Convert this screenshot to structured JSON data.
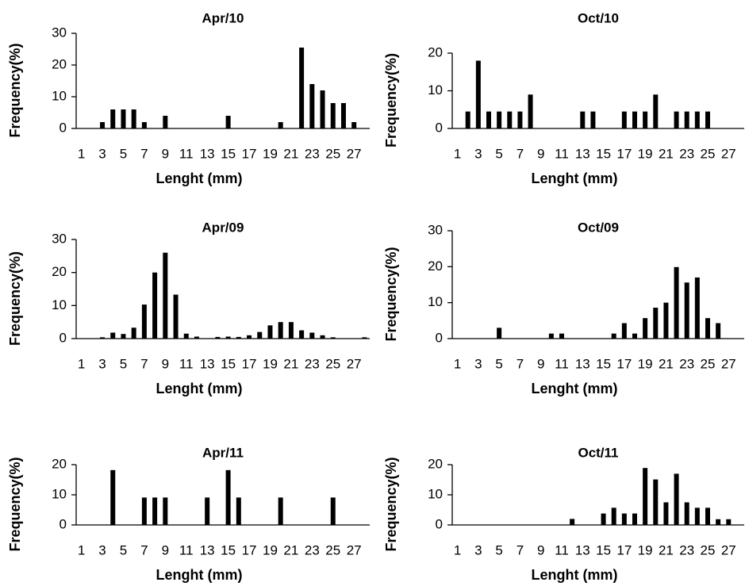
{
  "chart_data": [
    {
      "type": "bar",
      "title": "Apr/10",
      "xlabel": "Lenght (mm)",
      "ylabel": "Frequency(%)",
      "ylim": [
        0,
        30
      ],
      "yticks": [
        0,
        10,
        20,
        30
      ],
      "x_tick_labels": [
        "1",
        "3",
        "5",
        "7",
        "9",
        "11",
        "13",
        "15",
        "17",
        "19",
        "21",
        "23",
        "25",
        "27"
      ],
      "x": [
        1,
        2,
        3,
        4,
        5,
        6,
        7,
        8,
        9,
        10,
        11,
        12,
        13,
        14,
        15,
        16,
        17,
        18,
        19,
        20,
        21,
        22,
        23,
        24,
        25,
        26,
        27,
        28
      ],
      "values": [
        0,
        0,
        2,
        6,
        6,
        6,
        2,
        0,
        4,
        0,
        0,
        0,
        0,
        0,
        4,
        0,
        0,
        0,
        0,
        2,
        0,
        25.5,
        14,
        12,
        8,
        8,
        2,
        0
      ]
    },
    {
      "type": "bar",
      "title": "Oct/10",
      "xlabel": "Lenght (mm)",
      "ylabel": "Frequency(%)",
      "ylim": [
        0,
        20
      ],
      "yticks": [
        0,
        10,
        20
      ],
      "x_tick_labels": [
        "1",
        "3",
        "5",
        "7",
        "9",
        "11",
        "13",
        "15",
        "17",
        "19",
        "21",
        "23",
        "25",
        "27"
      ],
      "x": [
        1,
        2,
        3,
        4,
        5,
        6,
        7,
        8,
        9,
        10,
        11,
        12,
        13,
        14,
        15,
        16,
        17,
        18,
        19,
        20,
        21,
        22,
        23,
        24,
        25,
        26,
        27,
        28
      ],
      "values": [
        0,
        4.5,
        18,
        4.5,
        4.5,
        4.5,
        4.5,
        9,
        0,
        0,
        0,
        0,
        4.5,
        4.5,
        0,
        0,
        4.5,
        4.5,
        4.5,
        9,
        0,
        4.5,
        4.5,
        4.5,
        4.5,
        0,
        0,
        0
      ]
    },
    {
      "type": "bar",
      "title": "Apr/09",
      "xlabel": "Lenght (mm)",
      "ylabel": "Frequency(%)",
      "ylim": [
        0,
        30
      ],
      "yticks": [
        0,
        10,
        20,
        30
      ],
      "x_tick_labels": [
        "1",
        "3",
        "5",
        "7",
        "9",
        "11",
        "13",
        "15",
        "17",
        "19",
        "21",
        "23",
        "25",
        "27"
      ],
      "x": [
        1,
        2,
        3,
        4,
        5,
        6,
        7,
        8,
        9,
        10,
        11,
        12,
        13,
        14,
        15,
        16,
        17,
        18,
        19,
        20,
        21,
        22,
        23,
        24,
        25,
        26,
        27,
        28
      ],
      "values": [
        0,
        0,
        0.4,
        1.8,
        1.4,
        3.3,
        10.3,
        20,
        26,
        13.3,
        1.5,
        0.6,
        0,
        0.5,
        0.6,
        0.5,
        1,
        2,
        4,
        5,
        5,
        2.5,
        1.8,
        1,
        0.4,
        0,
        0,
        0.4
      ]
    },
    {
      "type": "bar",
      "title": "Oct/09",
      "xlabel": "Lenght (mm)",
      "ylabel": "Frequency(%)",
      "ylim": [
        0,
        30
      ],
      "yticks": [
        0,
        10,
        20,
        30
      ],
      "x_tick_labels": [
        "1",
        "3",
        "5",
        "7",
        "9",
        "11",
        "13",
        "15",
        "17",
        "19",
        "21",
        "23",
        "25",
        "27"
      ],
      "x": [
        1,
        2,
        3,
        4,
        5,
        6,
        7,
        8,
        9,
        10,
        11,
        12,
        13,
        14,
        15,
        16,
        17,
        18,
        19,
        20,
        21,
        22,
        23,
        24,
        25,
        26,
        27,
        28
      ],
      "values": [
        0,
        0,
        0,
        0,
        3,
        0,
        0,
        0,
        0,
        1.4,
        1.4,
        0,
        0,
        0,
        0,
        1.4,
        4.3,
        1.4,
        5.7,
        8.6,
        10,
        19.9,
        15.6,
        17,
        5.7,
        4.3,
        0,
        0
      ]
    },
    {
      "type": "bar",
      "title": "Apr/11",
      "xlabel": "Lenght (mm)",
      "ylabel": "Frequency(%)",
      "ylim": [
        0,
        20
      ],
      "yticks": [
        0,
        10,
        20
      ],
      "x_tick_labels": [
        "1",
        "3",
        "5",
        "7",
        "9",
        "11",
        "13",
        "15",
        "17",
        "19",
        "21",
        "23",
        "25",
        "27"
      ],
      "x": [
        1,
        2,
        3,
        4,
        5,
        6,
        7,
        8,
        9,
        10,
        11,
        12,
        13,
        14,
        15,
        16,
        17,
        18,
        19,
        20,
        21,
        22,
        23,
        24,
        25,
        26,
        27,
        28
      ],
      "values": [
        0,
        0,
        0,
        18.2,
        0,
        0,
        9.1,
        9.1,
        9.1,
        0,
        0,
        0,
        9.1,
        0,
        18.2,
        9.1,
        0,
        0,
        0,
        9.1,
        0,
        0,
        0,
        0,
        9.1,
        0,
        0,
        0
      ]
    },
    {
      "type": "bar",
      "title": "Oct/11",
      "xlabel": "Lenght (mm)",
      "ylabel": "Frequency(%)",
      "ylim": [
        0,
        20
      ],
      "yticks": [
        0,
        10,
        20
      ],
      "x_tick_labels": [
        "1",
        "3",
        "5",
        "7",
        "9",
        "11",
        "13",
        "15",
        "17",
        "19",
        "21",
        "23",
        "25",
        "27"
      ],
      "x": [
        1,
        2,
        3,
        4,
        5,
        6,
        7,
        8,
        9,
        10,
        11,
        12,
        13,
        14,
        15,
        16,
        17,
        18,
        19,
        20,
        21,
        22,
        23,
        24,
        25,
        26,
        27,
        28
      ],
      "values": [
        0,
        0,
        0,
        0,
        0,
        0,
        0,
        0,
        0,
        0,
        0,
        2,
        0,
        0,
        3.8,
        5.7,
        3.8,
        3.8,
        18.9,
        15.1,
        7.5,
        17,
        7.5,
        5.7,
        5.7,
        1.9,
        1.9,
        0
      ]
    }
  ]
}
